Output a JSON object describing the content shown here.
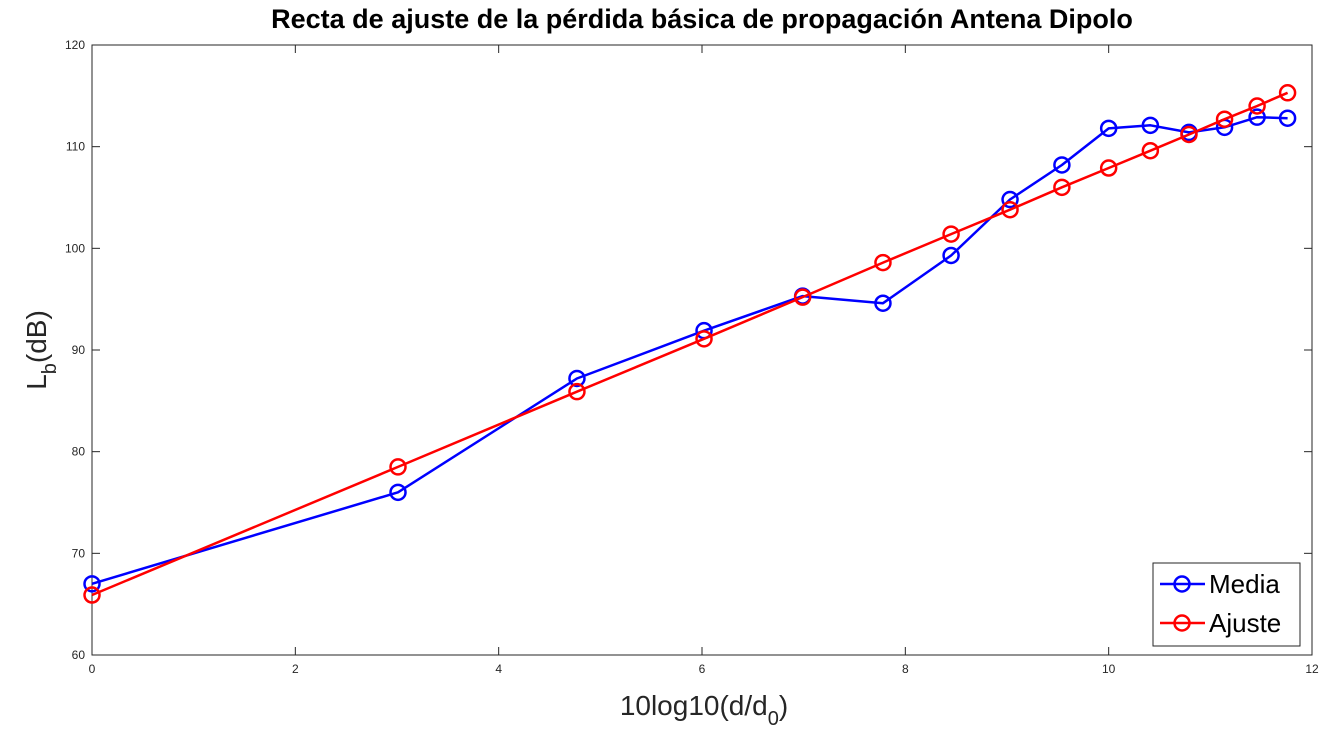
{
  "chart_data": {
    "type": "line",
    "title": "Recta de ajuste de la pérdida básica de  propagación Antena Dipolo",
    "xlabel": {
      "main": "10log10(d/d",
      "sub": "0",
      "end": ")"
    },
    "ylabel": {
      "main": "L",
      "sub": "b",
      "end": "(dB)"
    },
    "xlim": [
      0,
      12
    ],
    "ylim": [
      60,
      120
    ],
    "xticks": [
      0,
      2,
      4,
      6,
      8,
      10,
      12
    ],
    "yticks": [
      60,
      70,
      80,
      90,
      100,
      110,
      120
    ],
    "xtick_labels": [
      "0",
      "2",
      "4",
      "6",
      "8",
      "10",
      "12"
    ],
    "ytick_labels": [
      "60",
      "70",
      "80",
      "90",
      "100",
      "110",
      "120"
    ],
    "grid": false,
    "legend_position": "bottom-right",
    "series": [
      {
        "name": "Media",
        "color": "#0000ff",
        "marker": "circle",
        "x": [
          0,
          3.01,
          4.77,
          6.02,
          6.99,
          7.78,
          8.45,
          9.03,
          9.54,
          10.0,
          10.41,
          10.79,
          11.14,
          11.46,
          11.76
        ],
        "y": [
          67.0,
          76.0,
          87.2,
          91.9,
          95.3,
          94.6,
          99.3,
          104.8,
          108.2,
          111.8,
          112.1,
          111.4,
          111.9,
          112.9,
          112.8
        ]
      },
      {
        "name": "Ajuste",
        "color": "#ff0000",
        "marker": "circle",
        "x": [
          0,
          3.01,
          4.77,
          6.02,
          6.99,
          7.78,
          8.45,
          9.03,
          9.54,
          10.0,
          10.41,
          10.79,
          11.14,
          11.46,
          11.76
        ],
        "y": [
          65.9,
          78.5,
          85.9,
          91.1,
          95.2,
          98.6,
          101.4,
          103.8,
          106.0,
          107.9,
          109.6,
          111.2,
          112.7,
          114.0,
          115.3
        ]
      }
    ]
  }
}
